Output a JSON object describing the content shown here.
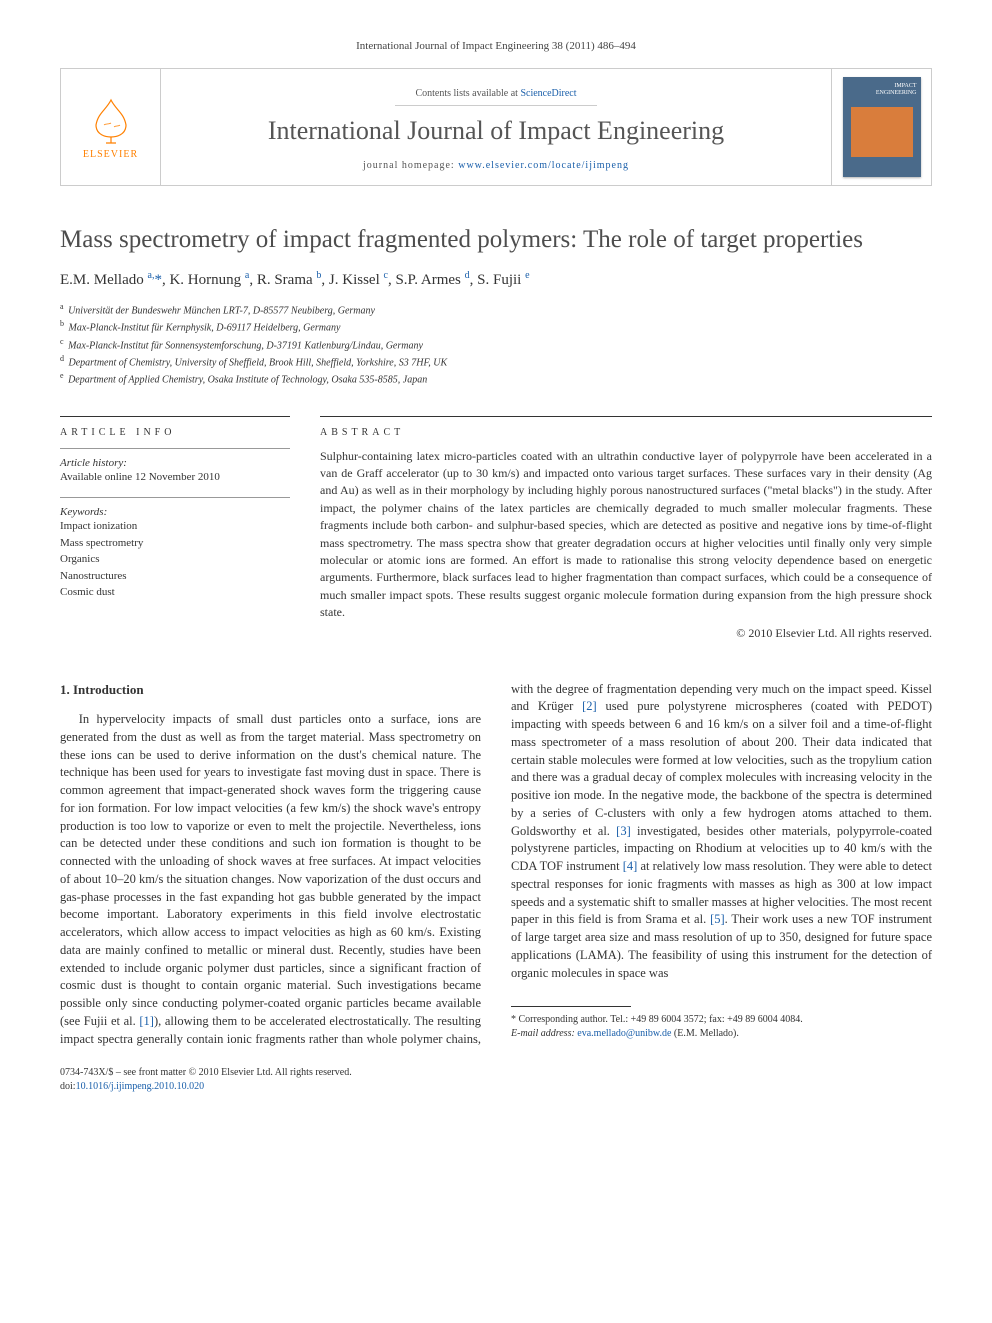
{
  "citation": "International Journal of Impact Engineering 38 (2011) 486–494",
  "publisher_logo_label": "ELSEVIER",
  "contents_prefix": "Contents lists available at ",
  "contents_link": "ScienceDirect",
  "journal_name": "International Journal of Impact Engineering",
  "homepage_prefix": "journal homepage: ",
  "homepage_url": "www.elsevier.com/locate/ijimpeng",
  "cover_label_top": "IMPACT",
  "cover_label_bottom": "ENGINEERING",
  "paper_title": "Mass spectrometry of impact fragmented polymers: The role of target properties",
  "authors_html": "E.M. Mellado <sup>a,</sup><span class='corr'>*</span>, K. Hornung <sup>a</sup>, R. Srama <sup>b</sup>, J. Kissel <sup>c</sup>, S.P. Armes <sup>d</sup>, S. Fujii <sup>e</sup>",
  "affiliations": [
    {
      "sup": "a",
      "text": "Universität der Bundeswehr München LRT-7, D-85577 Neubiberg, Germany"
    },
    {
      "sup": "b",
      "text": "Max-Planck-Institut für Kernphysik, D-69117 Heidelberg, Germany"
    },
    {
      "sup": "c",
      "text": "Max-Planck-Institut für Sonnensystemforschung, D-37191 Katlenburg/Lindau, Germany"
    },
    {
      "sup": "d",
      "text": "Department of Chemistry, University of Sheffield, Brook Hill, Sheffield, Yorkshire, S3 7HF, UK"
    },
    {
      "sup": "e",
      "text": "Department of Applied Chemistry, Osaka Institute of Technology, Osaka 535-8585, Japan"
    }
  ],
  "article_info_heading": "ARTICLE INFO",
  "history_label": "Article history:",
  "history_text": "Available online 12 November 2010",
  "keywords_label": "Keywords:",
  "keywords": [
    "Impact ionization",
    "Mass spectrometry",
    "Organics",
    "Nanostructures",
    "Cosmic dust"
  ],
  "abstract_heading": "ABSTRACT",
  "abstract_text": "Sulphur-containing latex micro-particles coated with an ultrathin conductive layer of polypyrrole have been accelerated in a van de Graff accelerator (up to 30 km/s) and impacted onto various target surfaces. These surfaces vary in their density (Ag and Au) as well as in their morphology by including highly porous nanostructured surfaces (\"metal blacks\") in the study. After impact, the polymer chains of the latex particles are chemically degraded to much smaller molecular fragments. These fragments include both carbon- and sulphur-based species, which are detected as positive and negative ions by time-of-flight mass spectrometry. The mass spectra show that greater degradation occurs at higher velocities until finally only very simple molecular or atomic ions are formed. An effort is made to rationalise this strong velocity dependence based on energetic arguments. Furthermore, black surfaces lead to higher fragmentation than compact surfaces, which could be a consequence of much smaller impact spots. These results suggest organic molecule formation during expansion from the high pressure shock state.",
  "copyright_line": "© 2010 Elsevier Ltd. All rights reserved.",
  "intro_heading": "1. Introduction",
  "body_col1": "In hypervelocity impacts of small dust particles onto a surface, ions are generated from the dust as well as from the target material. Mass spectrometry on these ions can be used to derive information on the dust's chemical nature. The technique has been used for years to investigate fast moving dust in space. There is common agreement that impact-generated shock waves form the triggering cause for ion formation. For low impact velocities (a few km/s) the shock wave's entropy production is too low to vaporize or even to melt the projectile. Nevertheless, ions can be detected under these conditions and such ion formation is thought to be connected with the unloading of shock waves at free surfaces. At impact velocities of about 10–20 km/s the situation changes. Now vaporization of the dust occurs and gas-phase processes in the fast expanding hot gas bubble generated by the impact become important. Laboratory experiments in this field involve electrostatic accelerators, which allow access to impact velocities as high as 60 km/s. Existing data are mainly confined to metallic or mineral dust. Recently, studies have been extended to include organic polymer dust particles, since a significant fraction of cosmic dust is thought to contain organic",
  "body_col2": "material. Such investigations became possible only since conducting polymer-coated organic particles became available (see Fujii et al. [1]), allowing them to be accelerated electrostatically. The resulting impact spectra generally contain ionic fragments rather than whole polymer chains, with the degree of fragmentation depending very much on the impact speed. Kissel and Krüger [2] used pure polystyrene microspheres (coated with PEDOT) impacting with speeds between 6 and 16 km/s on a silver foil and a time-of-flight mass spectrometer of a mass resolution of about 200. Their data indicated that certain stable molecules were formed at low velocities, such as the tropylium cation and there was a gradual decay of complex molecules with increasing velocity in the positive ion mode. In the negative mode, the backbone of the spectra is determined by a series of C-clusters with only a few hydrogen atoms attached to them. Goldsworthy et al. [3] investigated, besides other materials, polypyrrole-coated polystyrene particles, impacting on Rhodium at velocities up to 40 km/s with the CDA TOF instrument [4] at relatively low mass resolution. They were able to detect spectral responses for ionic fragments with masses as high as 300 at low impact speeds and a systematic shift to smaller masses at higher velocities. The most recent paper in this field is from Srama et al. [5]. Their work uses a new TOF instrument of large target area size and mass resolution of up to 350, designed for future space applications (LAMA). The feasibility of using this instrument for the detection of organic molecules in space was",
  "refs": {
    "r1": "[1]",
    "r2": "[2]",
    "r3": "[3]",
    "r4": "[4]",
    "r5": "[5]"
  },
  "corr_marker": "*",
  "corr_text": " Corresponding author. Tel.: +49 89 6004 3572; fax: +49 89 6004 4084.",
  "email_label": "E-mail address: ",
  "email": "eva.mellado@unibw.de",
  "email_suffix": " (E.M. Mellado).",
  "issn_line": "0734-743X/$ – see front matter © 2010 Elsevier Ltd. All rights reserved.",
  "doi_prefix": "doi:",
  "doi": "10.1016/j.ijimpeng.2010.10.020",
  "colors": {
    "link": "#1a5faa",
    "logo_orange": "#ff8000",
    "cover_bg": "#4a6a8a",
    "cover_img": "#d97d3c",
    "text": "#333333",
    "heading_gray": "#4d4d4d",
    "border_light": "#cccccc"
  }
}
